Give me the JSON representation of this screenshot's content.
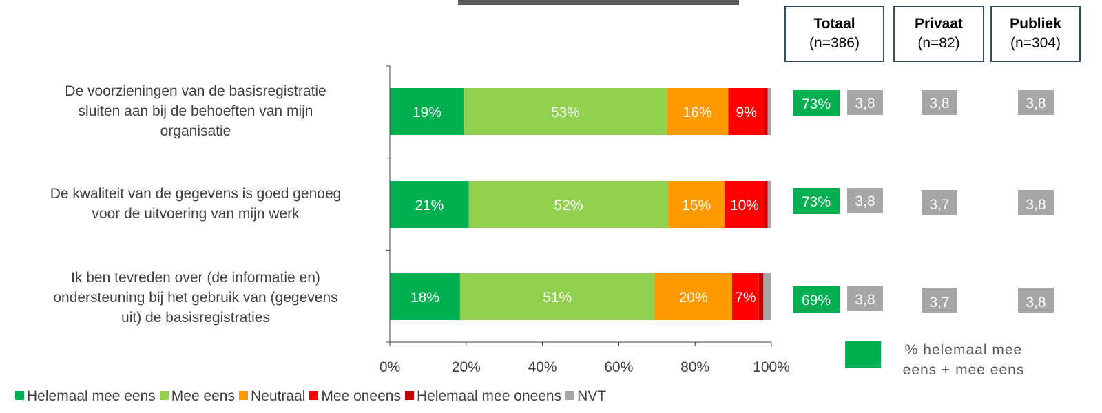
{
  "chart_data": {
    "type": "bar",
    "orientation": "horizontal",
    "stacked": true,
    "categories": [
      "De voorzieningen van de basisregistratie sluiten aan bij de behoeften van mijn organisatie",
      "De kwaliteit van de gegevens is goed genoeg voor de uitvoering van mijn werk",
      "Ik ben tevreden over (de informatie en) ondersteuning bij het gebruik van (gegevens uit) de basisregistraties"
    ],
    "category_lines": [
      [
        "De voorzieningen van de basisregistratie",
        "sluiten aan bij de behoeften van mijn",
        "organisatie"
      ],
      [
        "De kwaliteit van de gegevens is goed genoeg",
        "voor de uitvoering van mijn werk"
      ],
      [
        "Ik ben tevreden over (de informatie en)",
        "ondersteuning bij het gebruik van (gegevens",
        "uit) de basisregistraties"
      ]
    ],
    "series": [
      {
        "name": "Helemaal mee eens",
        "color": "#00b050",
        "values": [
          19.5,
          20.7,
          18.4
        ],
        "labels": [
          "19%",
          "21%",
          "18%"
        ]
      },
      {
        "name": "Mee eens",
        "color": "#92d050",
        "values": [
          53.0,
          52.3,
          51.0
        ],
        "labels": [
          "53%",
          "52%",
          "51%"
        ]
      },
      {
        "name": "Neutraal",
        "color": "#ff9900",
        "values": [
          16.2,
          14.7,
          20.3
        ],
        "labels": [
          "16%",
          "15%",
          "20%"
        ]
      },
      {
        "name": "Mee oneens",
        "color": "#ff0000",
        "values": [
          9.5,
          10.5,
          7.0
        ],
        "labels": [
          "9%",
          "10%",
          "7%"
        ]
      },
      {
        "name": "Helemaal mee oneens",
        "color": "#c00000",
        "values": [
          0.8,
          0.8,
          1.2
        ],
        "labels": [
          "",
          "",
          ""
        ]
      },
      {
        "name": "NVT",
        "color": "#a6a6a6",
        "values": [
          1.0,
          1.0,
          2.1
        ],
        "labels": [
          "",
          "",
          ""
        ]
      }
    ],
    "xlim": [
      0,
      100
    ],
    "xticks": [
      "0%",
      "20%",
      "40%",
      "60%",
      "80%",
      "100%"
    ],
    "legend": "bottom"
  },
  "summary": {
    "agree_pct": [
      "73%",
      "73%",
      "69%"
    ],
    "groups": [
      {
        "title": "Totaal",
        "n": "(n=386)",
        "scores": [
          "3,8",
          "3,8",
          "3,8"
        ]
      },
      {
        "title": "Privaat",
        "n": "(n=82)",
        "scores": [
          "3,8",
          "3,7",
          "3,7"
        ]
      },
      {
        "title": "Publiek",
        "n": "(n=304)",
        "scores": [
          "3,8",
          "3,8",
          "3,8"
        ]
      }
    ],
    "key_label": "% helemaal mee eens + mee eens",
    "key_color": "#00b050"
  }
}
